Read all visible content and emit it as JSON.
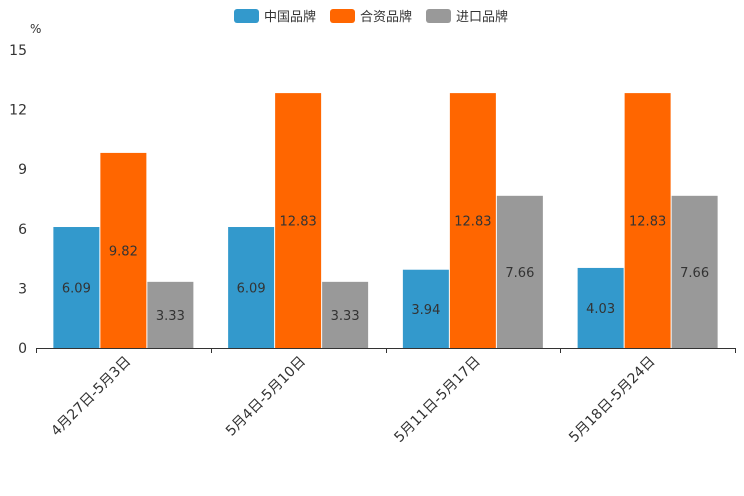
{
  "chart_data": {
    "type": "bar",
    "unit": "%",
    "categories": [
      "4月27日-5月3日",
      "5月4日-5月10日",
      "5月11日-5月17日",
      "5月18日-5月24日"
    ],
    "series": [
      {
        "name": "中国品牌",
        "color": "#3399cc",
        "values": [
          6.09,
          6.09,
          3.94,
          4.03
        ]
      },
      {
        "name": "合资品牌",
        "color": "#ff6600",
        "values": [
          9.82,
          12.83,
          12.83,
          12.83
        ]
      },
      {
        "name": "进口品牌",
        "color": "#999999",
        "values": [
          3.33,
          3.33,
          7.66,
          7.66
        ]
      }
    ],
    "ylim": [
      0,
      15
    ],
    "yticks": [
      0,
      3,
      6,
      9,
      12,
      15
    ],
    "legend_position": "top-center"
  }
}
